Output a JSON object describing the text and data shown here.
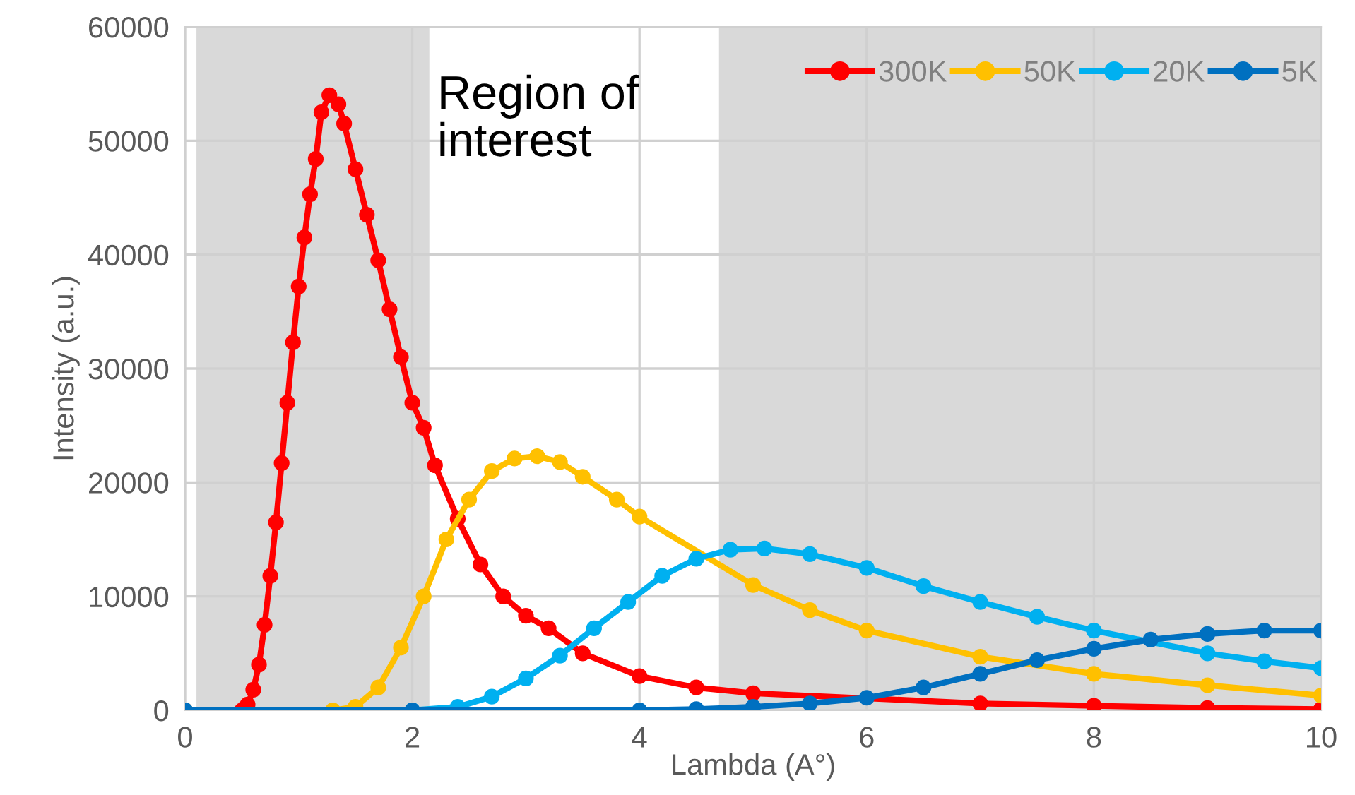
{
  "chart_data": {
    "type": "line",
    "xlabel": "Lambda (A°)",
    "ylabel": "Intensity (a.u.)",
    "annotations": [
      "Region of\ninterest"
    ],
    "xlim": [
      0,
      10
    ],
    "xticks": [
      0,
      2,
      4,
      6,
      8,
      10
    ],
    "ylim": [
      0,
      60000
    ],
    "yticks": [
      0,
      10000,
      20000,
      30000,
      40000,
      50000,
      60000
    ],
    "grid": true,
    "legend": "top right",
    "marker": "circle",
    "line_style": "solid",
    "bands": [
      {
        "axis": "x",
        "from": 0.1,
        "to": 2.15,
        "color": "#d9d9d9"
      },
      {
        "axis": "x",
        "from": 4.7,
        "to": 10,
        "color": "#d9d9d9"
      }
    ],
    "series": [
      {
        "name": "300K",
        "color": "#ff0000",
        "x": [
          0,
          0.5,
          0.55,
          0.6,
          0.65,
          0.7,
          0.75,
          0.8,
          0.85,
          0.9,
          0.95,
          1.0,
          1.05,
          1.1,
          1.15,
          1.2,
          1.27,
          1.35,
          1.4,
          1.5,
          1.6,
          1.7,
          1.8,
          1.9,
          2.0,
          2.1,
          2.2,
          2.4,
          2.6,
          2.8,
          3.0,
          3.2,
          3.5,
          4.0,
          4.5,
          5.0,
          7.0,
          8.0,
          9.0,
          10
        ],
        "values": [
          0,
          0,
          500,
          1800,
          4000,
          7500,
          11800,
          16500,
          21700,
          27000,
          32300,
          37200,
          41500,
          45300,
          48400,
          52500,
          54000,
          53200,
          51500,
          47500,
          43500,
          39500,
          35200,
          31000,
          27000,
          24800,
          21500,
          16800,
          12800,
          10000,
          8300,
          7200,
          5000,
          3000,
          2000,
          1500,
          600,
          400,
          200,
          100
        ]
      },
      {
        "name": "50K",
        "color": "#ffc000",
        "x": [
          0,
          1.3,
          1.5,
          1.7,
          1.9,
          2.1,
          2.3,
          2.5,
          2.7,
          2.9,
          3.1,
          3.3,
          3.5,
          3.8,
          4.0,
          5.0,
          5.5,
          6.0,
          7.0,
          8.0,
          9.0,
          10
        ],
        "values": [
          0,
          0,
          300,
          2000,
          5500,
          10000,
          15000,
          18500,
          21000,
          22100,
          22300,
          21800,
          20500,
          18500,
          17000,
          11000,
          8800,
          7000,
          4700,
          3200,
          2200,
          1300
        ]
      },
      {
        "name": "20K",
        "color": "#00b0f0",
        "x": [
          0,
          2.0,
          2.4,
          2.7,
          3.0,
          3.3,
          3.6,
          3.9,
          4.2,
          4.5,
          4.8,
          5.1,
          5.5,
          6.0,
          6.5,
          7.0,
          7.5,
          8.0,
          9.0,
          9.5,
          10
        ],
        "values": [
          0,
          0,
          300,
          1200,
          2800,
          4800,
          7200,
          9500,
          11800,
          13300,
          14100,
          14200,
          13700,
          12500,
          10900,
          9500,
          8200,
          7000,
          5000,
          4300,
          3700
        ]
      },
      {
        "name": "5K",
        "color": "#0070c0",
        "x": [
          0,
          2,
          4.0,
          4.5,
          5.0,
          5.5,
          6.0,
          6.5,
          7.0,
          7.5,
          8.0,
          8.5,
          9.0,
          9.5,
          10
        ],
        "values": [
          0,
          0,
          0,
          100,
          300,
          600,
          1100,
          2000,
          3200,
          4400,
          5400,
          6200,
          6700,
          7000,
          7000
        ]
      }
    ]
  }
}
